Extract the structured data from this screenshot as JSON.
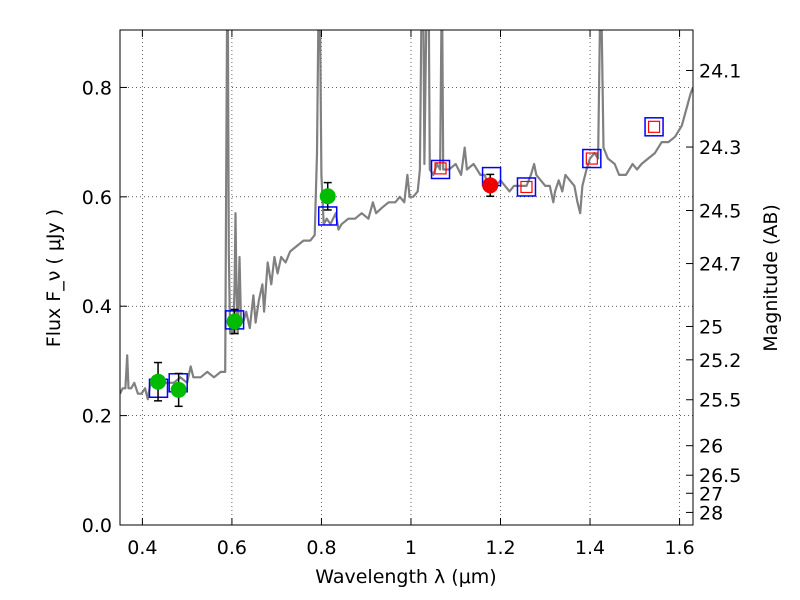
{
  "chart_data": {
    "type": "scatter",
    "title": "",
    "xlabel": "Wavelength  λ (μm)",
    "ylabel": "Flux  F_ν  ( μJy )",
    "y2label": "Magnitude (AB)",
    "xlim": [
      0.35,
      1.63
    ],
    "ylim": [
      0.0,
      0.905
    ],
    "grid": true,
    "x_ticks": [
      0.4,
      0.6,
      0.8,
      1.0,
      1.2,
      1.4,
      1.6
    ],
    "x_tick_labels": [
      "0.4",
      "0.6",
      "0.8",
      "1",
      "1.2",
      "1.4",
      "1.6"
    ],
    "y_ticks": [
      0.0,
      0.2,
      0.4,
      0.6,
      0.8
    ],
    "y_tick_labels": [
      "0.0",
      "0.2",
      "0.4",
      "0.6",
      "0.8"
    ],
    "y2_ticks": [
      {
        "label": "24.1",
        "flux": 0.831
      },
      {
        "label": "24.3",
        "flux": 0.691
      },
      {
        "label": "24.5",
        "flux": 0.575
      },
      {
        "label": "24.7",
        "flux": 0.478
      },
      {
        "label": "25",
        "flux": 0.363
      },
      {
        "label": "25.2",
        "flux": 0.302
      },
      {
        "label": "25.5",
        "flux": 0.229
      },
      {
        "label": "26",
        "flux": 0.145
      },
      {
        "label": "26.5",
        "flux": 0.091
      },
      {
        "label": "27",
        "flux": 0.058
      },
      {
        "label": "28",
        "flux": 0.023
      }
    ],
    "series": [
      {
        "name": "model spectrum",
        "kind": "line",
        "color": "#808080",
        "points": [
          [
            0.35,
            0.24
          ],
          [
            0.356,
            0.25
          ],
          [
            0.362,
            0.25
          ],
          [
            0.366,
            0.31
          ],
          [
            0.369,
            0.25
          ],
          [
            0.375,
            0.25
          ],
          [
            0.382,
            0.26
          ],
          [
            0.39,
            0.24
          ],
          [
            0.398,
            0.24
          ],
          [
            0.406,
            0.25
          ],
          [
            0.412,
            0.23
          ],
          [
            0.418,
            0.26
          ],
          [
            0.426,
            0.26
          ],
          [
            0.44,
            0.26
          ],
          [
            0.455,
            0.26
          ],
          [
            0.47,
            0.26
          ],
          [
            0.485,
            0.27
          ],
          [
            0.5,
            0.26
          ],
          [
            0.508,
            0.29
          ],
          [
            0.514,
            0.27
          ],
          [
            0.53,
            0.27
          ],
          [
            0.545,
            0.28
          ],
          [
            0.56,
            0.27
          ],
          [
            0.575,
            0.28
          ],
          [
            0.585,
            0.28
          ],
          [
            0.587,
            0.6
          ],
          [
            0.589,
            0.91
          ],
          [
            0.591,
            0.91
          ],
          [
            0.593,
            0.5
          ],
          [
            0.596,
            0.35
          ],
          [
            0.6,
            0.36
          ],
          [
            0.603,
            0.35
          ],
          [
            0.606,
            0.44
          ],
          [
            0.608,
            0.57
          ],
          [
            0.61,
            0.44
          ],
          [
            0.613,
            0.35
          ],
          [
            0.617,
            0.49
          ],
          [
            0.62,
            0.38
          ],
          [
            0.625,
            0.37
          ],
          [
            0.632,
            0.39
          ],
          [
            0.64,
            0.36
          ],
          [
            0.648,
            0.42
          ],
          [
            0.653,
            0.37
          ],
          [
            0.66,
            0.41
          ],
          [
            0.668,
            0.44
          ],
          [
            0.672,
            0.39
          ],
          [
            0.68,
            0.48
          ],
          [
            0.688,
            0.44
          ],
          [
            0.695,
            0.49
          ],
          [
            0.702,
            0.46
          ],
          [
            0.71,
            0.49
          ],
          [
            0.72,
            0.48
          ],
          [
            0.73,
            0.5
          ],
          [
            0.745,
            0.51
          ],
          [
            0.76,
            0.52
          ],
          [
            0.775,
            0.52
          ],
          [
            0.785,
            0.53
          ],
          [
            0.79,
            0.68
          ],
          [
            0.793,
            0.91
          ],
          [
            0.797,
            0.91
          ],
          [
            0.8,
            0.64
          ],
          [
            0.805,
            0.55
          ],
          [
            0.812,
            0.56
          ],
          [
            0.82,
            0.55
          ],
          [
            0.832,
            0.57
          ],
          [
            0.838,
            0.54
          ],
          [
            0.845,
            0.55
          ],
          [
            0.86,
            0.56
          ],
          [
            0.875,
            0.56
          ],
          [
            0.89,
            0.57
          ],
          [
            0.905,
            0.56
          ],
          [
            0.915,
            0.59
          ],
          [
            0.922,
            0.57
          ],
          [
            0.935,
            0.58
          ],
          [
            0.95,
            0.59
          ],
          [
            0.965,
            0.59
          ],
          [
            0.975,
            0.6
          ],
          [
            0.985,
            0.59
          ],
          [
            0.992,
            0.64
          ],
          [
            0.997,
            0.6
          ],
          [
            1.005,
            0.6
          ],
          [
            1.015,
            0.61
          ],
          [
            1.02,
            0.65
          ],
          [
            1.023,
            0.91
          ],
          [
            1.028,
            0.91
          ],
          [
            1.03,
            0.66
          ],
          [
            1.034,
            0.91
          ],
          [
            1.04,
            0.91
          ],
          [
            1.042,
            0.65
          ],
          [
            1.05,
            0.64
          ],
          [
            1.058,
            0.66
          ],
          [
            1.065,
            0.65
          ],
          [
            1.068,
            0.91
          ],
          [
            1.07,
            0.91
          ],
          [
            1.072,
            0.65
          ],
          [
            1.085,
            0.65
          ],
          [
            1.1,
            0.66
          ],
          [
            1.112,
            0.64
          ],
          [
            1.12,
            0.69
          ],
          [
            1.125,
            0.65
          ],
          [
            1.14,
            0.66
          ],
          [
            1.155,
            0.64
          ],
          [
            1.165,
            0.64
          ],
          [
            1.172,
            0.62
          ],
          [
            1.178,
            0.63
          ],
          [
            1.19,
            0.62
          ],
          [
            1.2,
            0.63
          ],
          [
            1.21,
            0.62
          ],
          [
            1.22,
            0.61
          ],
          [
            1.23,
            0.62
          ],
          [
            1.245,
            0.62
          ],
          [
            1.258,
            0.62
          ],
          [
            1.268,
            0.64
          ],
          [
            1.275,
            0.66
          ],
          [
            1.28,
            0.64
          ],
          [
            1.29,
            0.63
          ],
          [
            1.3,
            0.62
          ],
          [
            1.31,
            0.62
          ],
          [
            1.318,
            0.59
          ],
          [
            1.322,
            0.61
          ],
          [
            1.33,
            0.63
          ],
          [
            1.338,
            0.61
          ],
          [
            1.345,
            0.64
          ],
          [
            1.355,
            0.63
          ],
          [
            1.365,
            0.62
          ],
          [
            1.372,
            0.59
          ],
          [
            1.378,
            0.57
          ],
          [
            1.383,
            0.62
          ],
          [
            1.392,
            0.65
          ],
          [
            1.4,
            0.67
          ],
          [
            1.41,
            0.68
          ],
          [
            1.418,
            0.67
          ],
          [
            1.422,
            0.91
          ],
          [
            1.426,
            0.91
          ],
          [
            1.43,
            0.69
          ],
          [
            1.44,
            0.67
          ],
          [
            1.455,
            0.66
          ],
          [
            1.465,
            0.64
          ],
          [
            1.48,
            0.64
          ],
          [
            1.495,
            0.66
          ],
          [
            1.505,
            0.65
          ],
          [
            1.515,
            0.66
          ],
          [
            1.53,
            0.67
          ],
          [
            1.545,
            0.68
          ],
          [
            1.56,
            0.7
          ],
          [
            1.575,
            0.7
          ],
          [
            1.59,
            0.71
          ],
          [
            1.605,
            0.73
          ],
          [
            1.615,
            0.76
          ],
          [
            1.625,
            0.79
          ],
          [
            1.63,
            0.8
          ]
        ]
      },
      {
        "name": "model photometry (blue squares)",
        "kind": "open-square",
        "color": "#0000ff",
        "points": [
          [
            0.436,
            0.25
          ],
          [
            0.48,
            0.26
          ],
          [
            0.606,
            0.375
          ],
          [
            0.814,
            0.565
          ],
          [
            1.066,
            0.65
          ],
          [
            1.18,
            0.637
          ],
          [
            1.258,
            0.618
          ],
          [
            1.404,
            0.67
          ],
          [
            1.543,
            0.728
          ]
        ]
      },
      {
        "name": "upper-limit photometry (red small squares)",
        "kind": "small-open-square",
        "color": "#ff0000",
        "points": [
          [
            1.066,
            0.652
          ],
          [
            1.258,
            0.618
          ],
          [
            1.404,
            0.67
          ],
          [
            1.543,
            0.728
          ]
        ]
      },
      {
        "name": "observed flux (green)",
        "kind": "filled-circle",
        "color": "#00bb00",
        "points": [
          [
            0.435,
            0.262,
            0.035
          ],
          [
            0.481,
            0.247,
            0.03
          ],
          [
            0.606,
            0.372,
            0.022
          ],
          [
            0.814,
            0.601,
            0.025
          ]
        ]
      },
      {
        "name": "observed flux (red)",
        "kind": "filled-circle",
        "color": "#ee0000",
        "points": [
          [
            1.177,
            0.621,
            0.02
          ]
        ]
      }
    ]
  }
}
